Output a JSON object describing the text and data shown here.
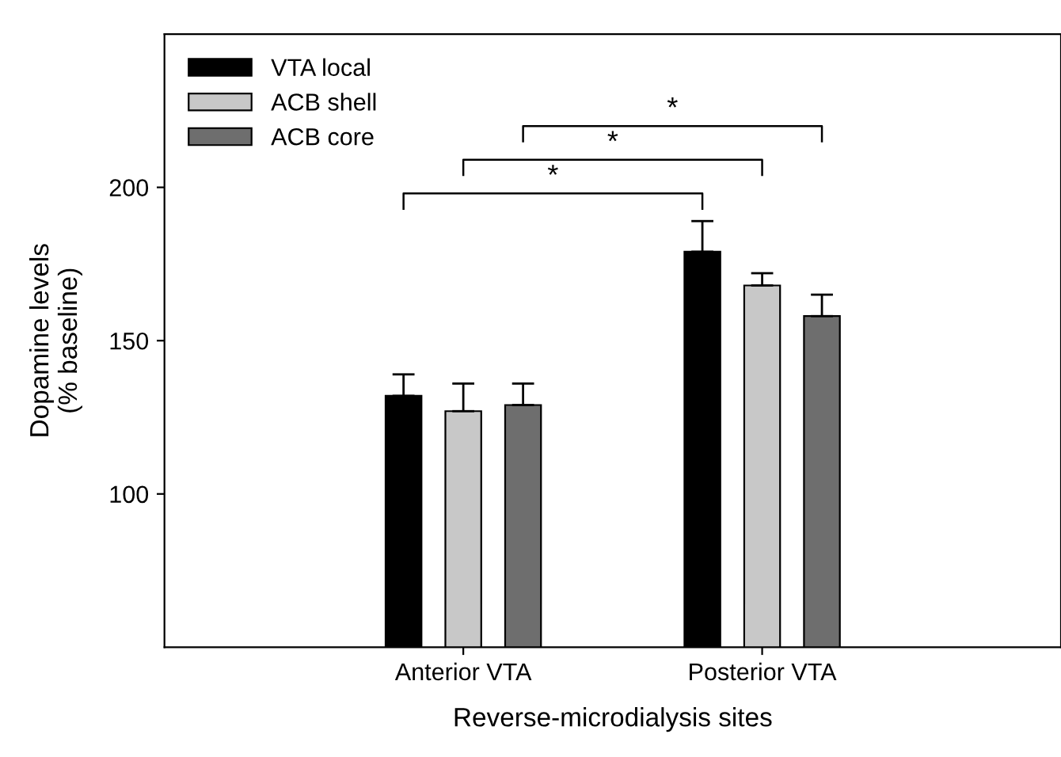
{
  "chart_data": {
    "type": "bar",
    "xlabel": "Reverse-microdialysis sites",
    "ylabel": "Dopamine levels\n(% baseline)",
    "categories": [
      "Anterior VTA",
      "Posterior VTA"
    ],
    "series": [
      {
        "name": "VTA local",
        "color": "#000000",
        "values": [
          132,
          179
        ],
        "errors": [
          [
            132,
            139
          ],
          [
            179,
            189
          ]
        ]
      },
      {
        "name": "ACB shell",
        "color": "#c8c8c8",
        "values": [
          127,
          168
        ],
        "errors": [
          [
            127,
            136
          ],
          [
            168,
            172
          ]
        ]
      },
      {
        "name": "ACB core",
        "color": "#6e6e6e",
        "values": [
          129,
          158
        ],
        "errors": [
          [
            129,
            136
          ],
          [
            158,
            165
          ]
        ]
      }
    ],
    "ylim": [
      50,
      250
    ],
    "yticks": [
      100,
      150,
      200
    ],
    "grid": false,
    "legend": "top left",
    "annotations": [
      "*",
      "*",
      "*"
    ]
  }
}
